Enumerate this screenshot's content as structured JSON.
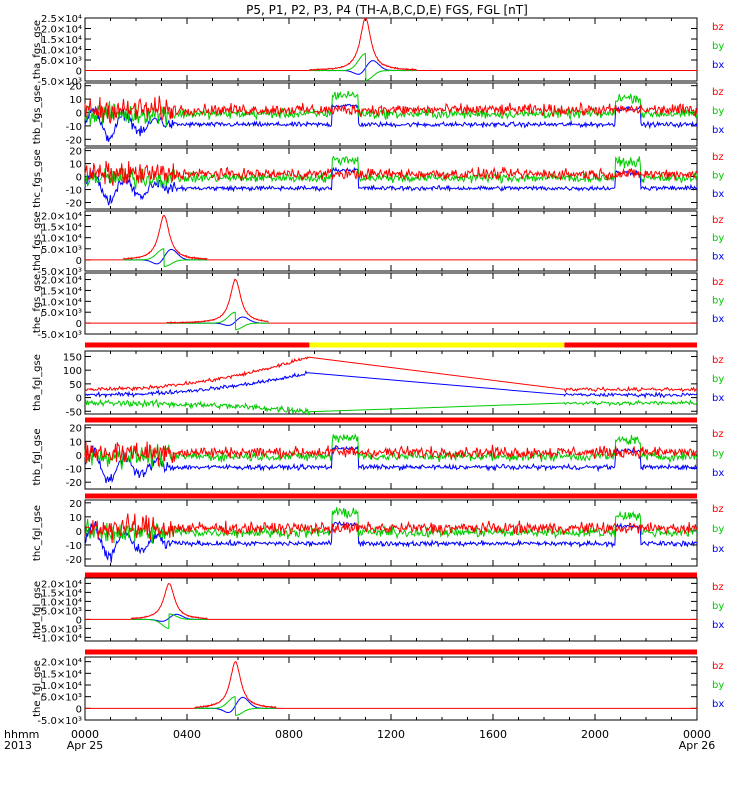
{
  "title": "P5, P1, P2, P3, P4 (TH-A,B,C,D,E) FGS, FGL [nT]",
  "colors": {
    "bx": "#0000ff",
    "by": "#00cc00",
    "bz": "#ff0000",
    "bar_red": "#ff0000",
    "bar_yellow": "#ffff00"
  },
  "xaxis": {
    "label_line1": "hhmm",
    "label_line2": "2013",
    "range": [
      0,
      24
    ],
    "ticks": [
      {
        "hour": 0,
        "label": "0000",
        "sub": "Apr 25"
      },
      {
        "hour": 4,
        "label": "0400",
        "sub": ""
      },
      {
        "hour": 8,
        "label": "0800",
        "sub": ""
      },
      {
        "hour": 12,
        "label": "1200",
        "sub": ""
      },
      {
        "hour": 16,
        "label": "1600",
        "sub": ""
      },
      {
        "hour": 20,
        "label": "2000",
        "sub": ""
      },
      {
        "hour": 24,
        "label": "0000",
        "sub": "Apr 26"
      }
    ]
  },
  "chart_data": [
    {
      "type": "line",
      "ylabel": "tha_fgs_gse",
      "kind": "spike",
      "ylim": [
        -5000,
        25000
      ],
      "yticks": [
        -5000,
        0,
        5000,
        10000,
        15000,
        20000,
        25000
      ],
      "ytick_labels": [
        "-5.0×10³",
        "0",
        "5.0×10³",
        "1.0×10⁴",
        "1.5×10⁴",
        "2.0×10⁴",
        "2.5×10⁴"
      ],
      "x_range": [
        8.8,
        13.0
      ],
      "peak_hour": 11.0,
      "series": [
        {
          "name": "bz",
          "peak": 25000
        },
        {
          "name": "by",
          "peak": 8000
        },
        {
          "name": "bx",
          "peak": 5000
        }
      ]
    },
    {
      "type": "line",
      "ylabel": "thb_fgs_gse",
      "kind": "noise",
      "ylim": [
        -25,
        22
      ],
      "yticks": [
        -20,
        -10,
        0,
        10,
        20
      ],
      "ytick_labels": [
        "-20",
        "-10",
        "0",
        "10",
        "20"
      ],
      "series": [
        {
          "name": "bz"
        },
        {
          "name": "by"
        },
        {
          "name": "bx"
        }
      ]
    },
    {
      "type": "line",
      "ylabel": "thc_fgs_gse",
      "kind": "noise",
      "ylim": [
        -25,
        22
      ],
      "yticks": [
        -20,
        -10,
        0,
        10,
        20
      ],
      "ytick_labels": [
        "-20",
        "-10",
        "0",
        "10",
        "20"
      ],
      "series": [
        {
          "name": "bz"
        },
        {
          "name": "by"
        },
        {
          "name": "bx"
        }
      ]
    },
    {
      "type": "line",
      "ylabel": "thd_fgs_gse",
      "kind": "spike",
      "ylim": [
        -5000,
        22000
      ],
      "yticks": [
        -5000,
        0,
        5000,
        10000,
        15000,
        20000
      ],
      "ytick_labels": [
        "-5.0×10³",
        "0",
        "5.0×10³",
        "1.0×10⁴",
        "1.5×10⁴",
        "2.0×10⁴"
      ],
      "x_range": [
        1.5,
        4.8
      ],
      "peak_hour": 3.1,
      "series": [
        {
          "name": "bz",
          "peak": 20000
        },
        {
          "name": "by",
          "peak": 5000
        },
        {
          "name": "bx",
          "peak": 5000
        }
      ]
    },
    {
      "type": "line",
      "ylabel": "the_fgs_gse",
      "kind": "spike",
      "ylim": [
        -5000,
        23000
      ],
      "yticks": [
        -5000,
        0,
        5000,
        10000,
        15000,
        20000
      ],
      "ytick_labels": [
        "-5.0×10³",
        "0",
        "5.0×10³",
        "1.0×10⁴",
        "1.5×10⁴",
        "2.0×10⁴"
      ],
      "x_range": [
        3.2,
        7.2
      ],
      "peak_hour": 5.9,
      "series": [
        {
          "name": "bz",
          "peak": 20000
        },
        {
          "name": "by",
          "peak": 5000
        },
        {
          "name": "bx",
          "peak": 3000
        }
      ],
      "status_bar": [
        {
          "from": 0,
          "to": 8.8,
          "color": "red"
        },
        {
          "from": 8.8,
          "to": 18.8,
          "color": "yellow"
        },
        {
          "from": 18.8,
          "to": 24,
          "color": "red"
        }
      ]
    },
    {
      "type": "line",
      "ylabel": "tha_fgl_gse",
      "kind": "trend",
      "ylim": [
        -60,
        170
      ],
      "yticks": [
        -50,
        0,
        50,
        100,
        150
      ],
      "ytick_labels": [
        "-50",
        "0",
        "50",
        "100",
        "150"
      ],
      "gap": [
        8.8,
        18.8
      ],
      "series": [
        {
          "name": "bz",
          "start": 30,
          "at_gap": 150,
          "end": 30
        },
        {
          "name": "by",
          "start": -20,
          "at_gap": -50,
          "end": -20
        },
        {
          "name": "bx",
          "start": 10,
          "at_gap": 90,
          "end": 10
        }
      ],
      "status_bar": [
        {
          "from": 0,
          "to": 24,
          "color": "red"
        }
      ]
    },
    {
      "type": "line",
      "ylabel": "thb_fgl_gse",
      "kind": "noise",
      "ylim": [
        -25,
        22
      ],
      "yticks": [
        -20,
        -10,
        0,
        10,
        20
      ],
      "ytick_labels": [
        "-20",
        "-10",
        "0",
        "10",
        "20"
      ],
      "series": [
        {
          "name": "bz"
        },
        {
          "name": "by"
        },
        {
          "name": "bx"
        }
      ],
      "status_bar": [
        {
          "from": 0,
          "to": 24,
          "color": "red"
        }
      ]
    },
    {
      "type": "line",
      "ylabel": "thc_fgl_gse",
      "kind": "noise",
      "ylim": [
        -25,
        22
      ],
      "yticks": [
        -20,
        -10,
        0,
        10,
        20
      ],
      "ytick_labels": [
        "-20",
        "-10",
        "0",
        "10",
        "20"
      ],
      "series": [
        {
          "name": "bz"
        },
        {
          "name": "by"
        },
        {
          "name": "bx"
        }
      ],
      "status_bar": [
        {
          "from": 0,
          "to": 24,
          "color": "red"
        }
      ]
    },
    {
      "type": "line",
      "ylabel": "thd_fgl_gse",
      "kind": "spike",
      "ylim": [
        -12000,
        23000
      ],
      "yticks": [
        -10000,
        -5000,
        0,
        5000,
        10000,
        15000,
        20000
      ],
      "ytick_labels": [
        "-1.0×10⁴",
        "-5.0×10³",
        "0",
        "5.0×10³",
        "1.0×10⁴",
        "1.5×10⁴",
        "2.0×10⁴"
      ],
      "x_range": [
        1.8,
        4.8
      ],
      "peak_hour": 3.3,
      "series": [
        {
          "name": "bz",
          "peak": 20000
        },
        {
          "name": "by",
          "peak": -5000
        },
        {
          "name": "bx",
          "peak": 3000
        }
      ],
      "status_bar": [
        {
          "from": 0,
          "to": 24,
          "color": "red"
        }
      ]
    },
    {
      "type": "line",
      "ylabel": "the_fgl_gse",
      "kind": "spike",
      "ylim": [
        -5000,
        22000
      ],
      "yticks": [
        -5000,
        0,
        5000,
        10000,
        15000,
        20000
      ],
      "ytick_labels": [
        "-5.0×10³",
        "0",
        "5.0×10³",
        "1.0×10⁴",
        "1.5×10⁴",
        "2.0×10⁴"
      ],
      "x_range": [
        4.3,
        7.5
      ],
      "peak_hour": 5.9,
      "series": [
        {
          "name": "bz",
          "peak": 20000
        },
        {
          "name": "by",
          "peak": 5000
        },
        {
          "name": "bx",
          "peak": 5000
        }
      ]
    }
  ]
}
